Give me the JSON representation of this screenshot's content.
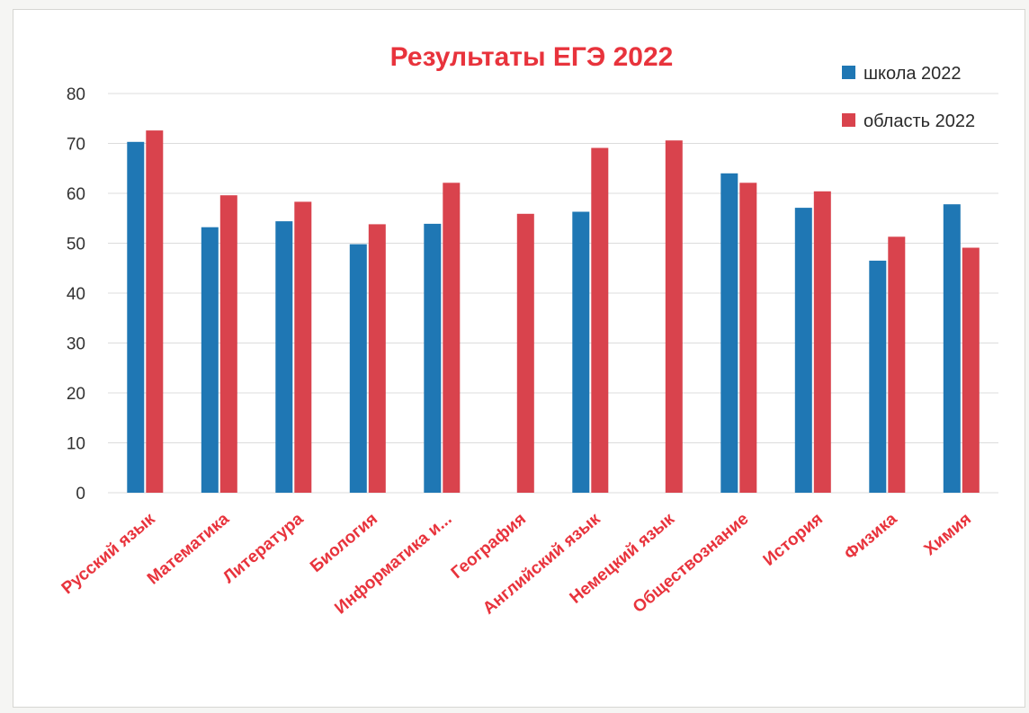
{
  "chart_data": {
    "type": "bar",
    "title": "Результаты ЕГЭ 2022",
    "categories": [
      "Русский язык",
      "Математика",
      "Литература",
      "Биология",
      "Информатика и...",
      "География",
      "Английский язык",
      "Немецкий язык",
      "Обществознание",
      "История",
      "Физика",
      "Химия"
    ],
    "series": [
      {
        "name": "школа 2022",
        "color": "#1f77b4",
        "values": [
          70.3,
          53.2,
          54.4,
          49.8,
          53.9,
          null,
          56.3,
          null,
          64.0,
          57.1,
          46.5,
          57.8
        ]
      },
      {
        "name": "область 2022",
        "color": "#d9434d",
        "values": [
          72.6,
          59.6,
          58.3,
          53.8,
          62.1,
          55.9,
          69.1,
          70.6,
          62.1,
          60.4,
          51.3,
          49.1
        ]
      }
    ],
    "ylim": [
      0,
      80
    ],
    "yticks": [
      0,
      10,
      20,
      30,
      40,
      50,
      60,
      70,
      80
    ],
    "grid": true,
    "legend_position": "top-right",
    "title_color": "#e8333c",
    "category_label_color": "#e8333c",
    "xlabel": "",
    "ylabel": ""
  }
}
